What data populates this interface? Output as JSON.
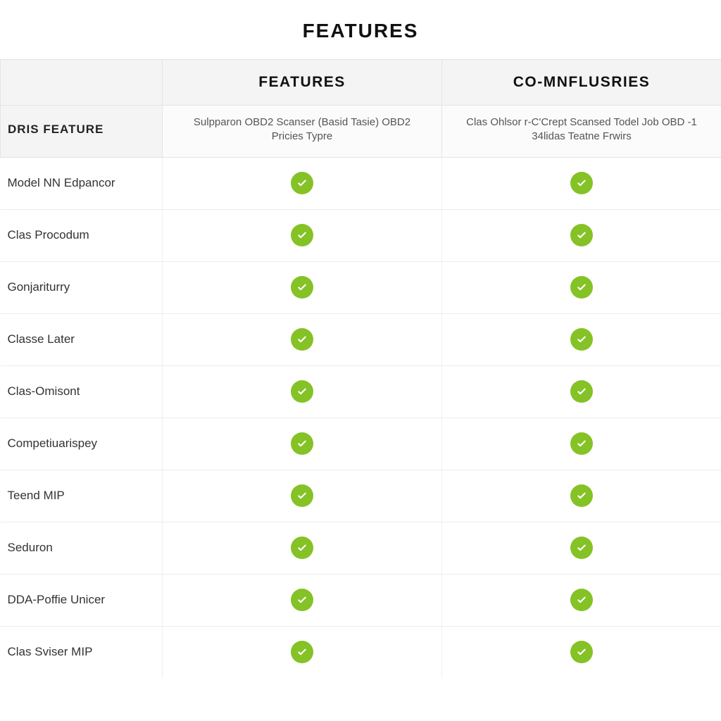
{
  "title": "FEATURES",
  "colors": {
    "check_bg": "#85c226",
    "check_stroke": "#ffffff",
    "page_bg": "#ffffff",
    "header_bg": "#f4f4f4",
    "subheader_bg": "#fbfbfb",
    "border": "#e4e4e4",
    "row_border": "#ececec",
    "text": "#222222",
    "subtext": "#555555"
  },
  "table": {
    "type": "table",
    "columns": [
      {
        "id": "feature",
        "header_group": "",
        "header_sub": "DRIS FEATURE"
      },
      {
        "id": "col1",
        "header_group": "FEATURES",
        "header_sub": "Sulpparon OBD2 Scanser (Basid Tasie) OBD2 Pricies Typre"
      },
      {
        "id": "col2",
        "header_group": "CO-MNFLUSRIES",
        "header_sub": "Clas Ohlsor r-C'Crept Scansed Todel Job OBD -1 34lidas Teatne Frwirs"
      }
    ],
    "rows": [
      {
        "label": "Model NN Edpancor",
        "col1": true,
        "col2": true
      },
      {
        "label": "Clas Procodum",
        "col1": true,
        "col2": true
      },
      {
        "label": "Gonjariturry",
        "col1": true,
        "col2": true
      },
      {
        "label": "Classe Later",
        "col1": true,
        "col2": true
      },
      {
        "label": "Clas-Omisont",
        "col1": true,
        "col2": true
      },
      {
        "label": "Competiuarispey",
        "col1": true,
        "col2": true
      },
      {
        "label": "Teend MIP",
        "col1": true,
        "col2": true
      },
      {
        "label": "Seduron",
        "col1": true,
        "col2": true
      },
      {
        "label": "DDA-Poffie Unicer",
        "col1": true,
        "col2": true
      },
      {
        "label": "Clas Sviser MIP",
        "col1": true,
        "col2": true
      }
    ]
  }
}
